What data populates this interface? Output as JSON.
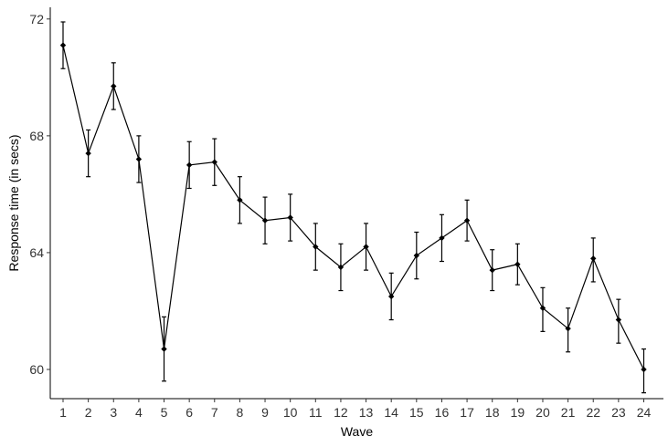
{
  "chart_data": {
    "type": "line",
    "title": "",
    "xlabel": "Wave",
    "ylabel": "Response time (in secs)",
    "x": [
      1,
      2,
      3,
      4,
      5,
      6,
      7,
      8,
      9,
      10,
      11,
      12,
      13,
      14,
      15,
      16,
      17,
      18,
      19,
      20,
      21,
      22,
      23,
      24
    ],
    "x_tick_labels": [
      "1",
      "2",
      "3",
      "4",
      "5",
      "6",
      "7",
      "8",
      "9",
      "10",
      "11",
      "12",
      "13",
      "14",
      "15",
      "16",
      "17",
      "18",
      "19",
      "20",
      "21",
      "22",
      "23",
      "24"
    ],
    "y_ticks": [
      60,
      64,
      68,
      72
    ],
    "y_tick_labels": [
      "60",
      "64",
      "68",
      "72"
    ],
    "ylim": [
      59.0,
      72.4
    ],
    "series": [
      {
        "values": [
          71.1,
          67.4,
          69.7,
          67.2,
          60.7,
          67.0,
          67.1,
          65.8,
          65.1,
          65.2,
          64.2,
          63.5,
          64.2,
          62.5,
          63.9,
          64.5,
          65.1,
          63.4,
          63.6,
          62.1,
          61.4,
          63.8,
          61.7,
          60.0
        ],
        "lower": [
          70.3,
          66.6,
          68.9,
          66.4,
          59.6,
          66.2,
          66.3,
          65.0,
          64.3,
          64.4,
          63.4,
          62.7,
          63.4,
          61.7,
          63.1,
          63.7,
          64.4,
          62.7,
          62.9,
          61.3,
          60.6,
          63.0,
          60.9,
          59.2
        ],
        "upper": [
          71.9,
          68.2,
          70.5,
          68.0,
          61.8,
          67.8,
          67.9,
          66.6,
          65.9,
          66.0,
          65.0,
          64.3,
          65.0,
          63.3,
          64.7,
          65.3,
          65.8,
          64.1,
          64.3,
          62.8,
          62.1,
          64.5,
          62.4,
          60.7
        ]
      }
    ],
    "grid": false,
    "legend": "none",
    "colors": {
      "line": "#000000",
      "point": "#000000",
      "axis": "#000000",
      "text": "#333333"
    }
  }
}
